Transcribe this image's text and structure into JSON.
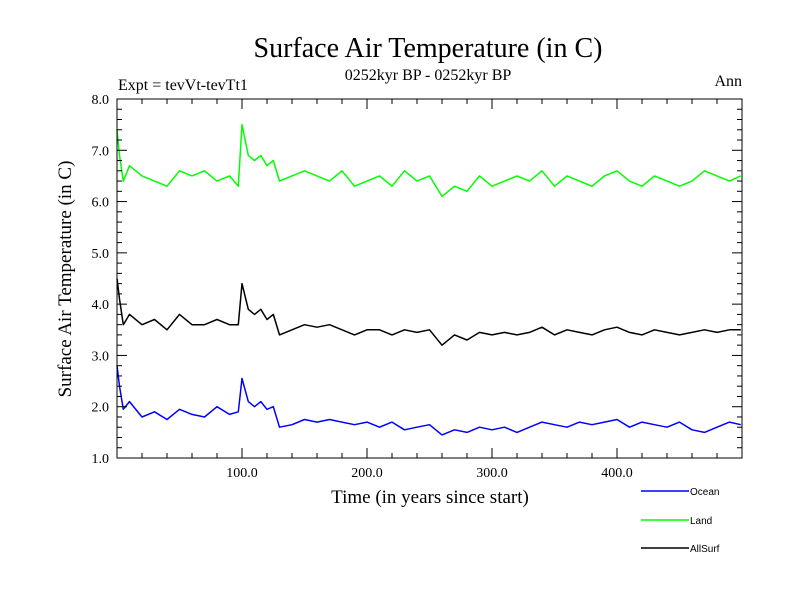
{
  "chart_data": {
    "type": "line",
    "title": "Surface Air Temperature (in C)",
    "subtitle": "0252kyr BP - 0252kyr BP",
    "expt_label": "Expt = tevVt-tevTt1",
    "season_label": "Ann",
    "xlabel": "Time (in years since start)",
    "ylabel": "Surface Air Temperature (in C)",
    "xlim": [
      0,
      500
    ],
    "ylim": [
      1.0,
      8.0
    ],
    "x_ticks": [
      100,
      200,
      300,
      400
    ],
    "x_tick_labels": [
      "100.0",
      "200.0",
      "300.0",
      "400.0"
    ],
    "y_ticks": [
      1,
      2,
      3,
      4,
      5,
      6,
      7,
      8
    ],
    "y_tick_labels": [
      "1.0",
      "2.0",
      "3.0",
      "4.0",
      "5.0",
      "6.0",
      "7.0",
      "8.0"
    ],
    "legend_position": "bottom-right",
    "series": [
      {
        "name": "Ocean",
        "color": "#0000ff",
        "x": [
          0,
          2,
          5,
          10,
          20,
          30,
          40,
          50,
          60,
          70,
          80,
          90,
          97,
          100,
          105,
          110,
          115,
          120,
          125,
          130,
          140,
          150,
          160,
          170,
          180,
          190,
          200,
          210,
          220,
          230,
          240,
          250,
          260,
          270,
          280,
          290,
          300,
          310,
          320,
          330,
          340,
          350,
          360,
          370,
          380,
          390,
          400,
          410,
          420,
          430,
          440,
          450,
          460,
          470,
          480,
          490,
          499
        ],
        "values": [
          2.8,
          2.4,
          1.95,
          2.1,
          1.8,
          1.9,
          1.75,
          1.95,
          1.85,
          1.8,
          2.0,
          1.85,
          1.9,
          2.55,
          2.1,
          2.0,
          2.1,
          1.95,
          2.0,
          1.6,
          1.65,
          1.75,
          1.7,
          1.75,
          1.7,
          1.65,
          1.7,
          1.6,
          1.7,
          1.55,
          1.6,
          1.65,
          1.45,
          1.55,
          1.5,
          1.6,
          1.55,
          1.6,
          1.5,
          1.6,
          1.7,
          1.65,
          1.6,
          1.7,
          1.65,
          1.7,
          1.75,
          1.6,
          1.7,
          1.65,
          1.6,
          1.7,
          1.55,
          1.5,
          1.6,
          1.7,
          1.65
        ]
      },
      {
        "name": "Land",
        "color": "#00ff00",
        "x": [
          0,
          2,
          5,
          10,
          20,
          30,
          40,
          50,
          60,
          70,
          80,
          90,
          97,
          100,
          105,
          110,
          115,
          120,
          125,
          130,
          140,
          150,
          160,
          170,
          180,
          190,
          200,
          210,
          220,
          230,
          240,
          250,
          260,
          270,
          280,
          290,
          300,
          310,
          320,
          330,
          340,
          350,
          360,
          370,
          380,
          390,
          400,
          410,
          420,
          430,
          440,
          450,
          460,
          470,
          480,
          490,
          499
        ],
        "values": [
          7.4,
          6.9,
          6.4,
          6.7,
          6.5,
          6.4,
          6.3,
          6.6,
          6.5,
          6.6,
          6.4,
          6.5,
          6.3,
          7.5,
          6.9,
          6.8,
          6.9,
          6.7,
          6.8,
          6.4,
          6.5,
          6.6,
          6.5,
          6.4,
          6.6,
          6.3,
          6.4,
          6.5,
          6.3,
          6.6,
          6.4,
          6.5,
          6.1,
          6.3,
          6.2,
          6.5,
          6.3,
          6.4,
          6.5,
          6.4,
          6.6,
          6.3,
          6.5,
          6.4,
          6.3,
          6.5,
          6.6,
          6.4,
          6.3,
          6.5,
          6.4,
          6.3,
          6.4,
          6.6,
          6.5,
          6.4,
          6.5
        ]
      },
      {
        "name": "AllSurf",
        "color": "#000000",
        "x": [
          0,
          2,
          5,
          10,
          20,
          30,
          40,
          50,
          60,
          70,
          80,
          90,
          97,
          100,
          105,
          110,
          115,
          120,
          125,
          130,
          140,
          150,
          160,
          170,
          180,
          190,
          200,
          210,
          220,
          230,
          240,
          250,
          260,
          270,
          280,
          290,
          300,
          310,
          320,
          330,
          340,
          350,
          360,
          370,
          380,
          390,
          400,
          410,
          420,
          430,
          440,
          450,
          460,
          470,
          480,
          490,
          499
        ],
        "values": [
          4.5,
          4.1,
          3.6,
          3.8,
          3.6,
          3.7,
          3.5,
          3.8,
          3.6,
          3.6,
          3.7,
          3.6,
          3.6,
          4.4,
          3.9,
          3.8,
          3.9,
          3.7,
          3.8,
          3.4,
          3.5,
          3.6,
          3.55,
          3.6,
          3.5,
          3.4,
          3.5,
          3.5,
          3.4,
          3.5,
          3.45,
          3.5,
          3.2,
          3.4,
          3.3,
          3.45,
          3.4,
          3.45,
          3.4,
          3.45,
          3.55,
          3.4,
          3.5,
          3.45,
          3.4,
          3.5,
          3.55,
          3.45,
          3.4,
          3.5,
          3.45,
          3.4,
          3.45,
          3.5,
          3.45,
          3.5,
          3.5
        ]
      }
    ]
  }
}
